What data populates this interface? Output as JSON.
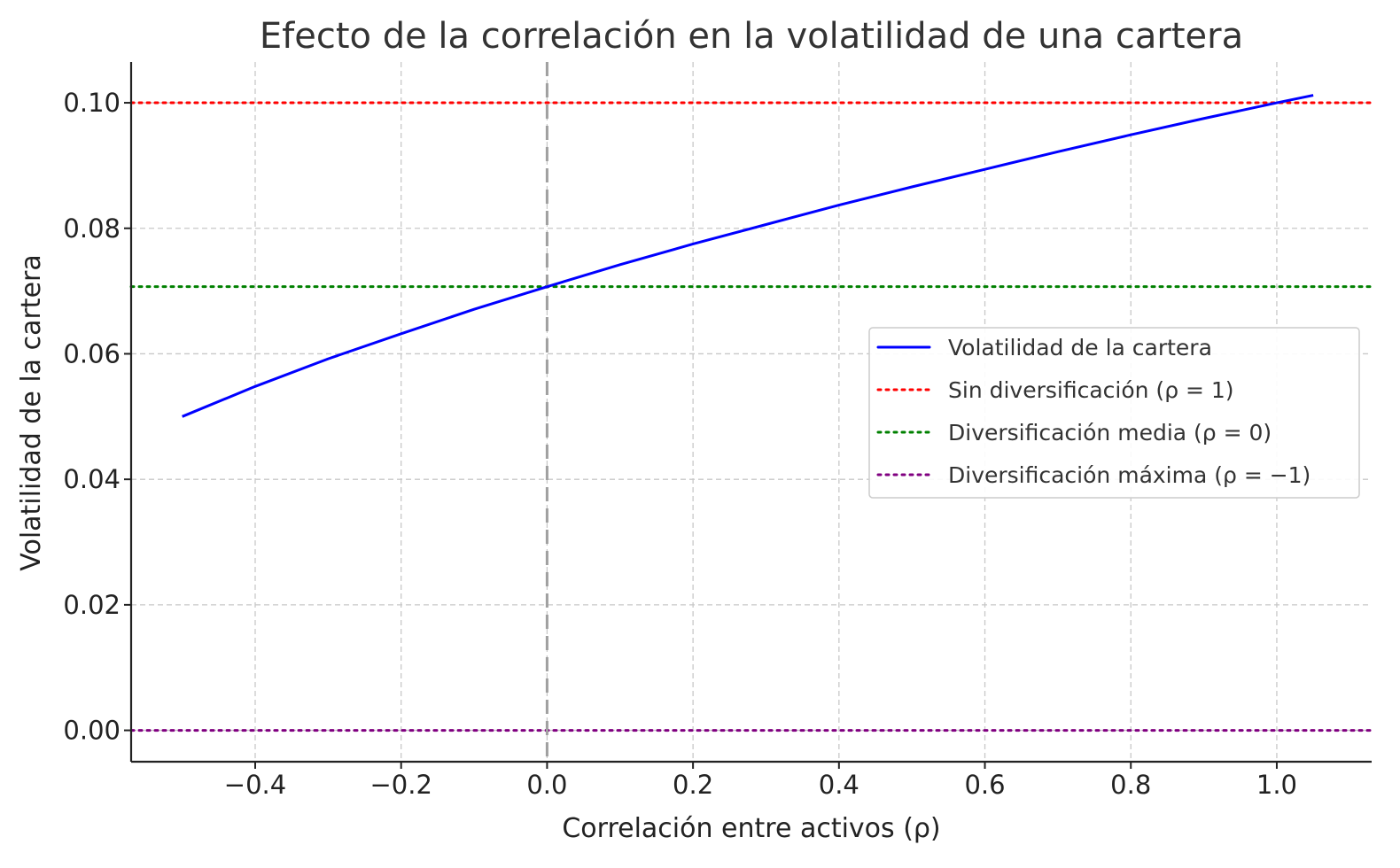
{
  "chart_data": {
    "type": "line",
    "title": "Efecto de la correlación en la volatilidad de una cartera",
    "xlabel": "Correlación entre activos (ρ)",
    "ylabel": "Volatilidad de la cartera",
    "xlim": [
      -0.57,
      1.13
    ],
    "ylim": [
      -0.005,
      0.1065
    ],
    "xticks": [
      -0.4,
      -0.2,
      0.0,
      0.2,
      0.4,
      0.6,
      0.8,
      1.0
    ],
    "xtick_labels": [
      "−0.4",
      "−0.2",
      "0.0",
      "0.2",
      "0.4",
      "0.6",
      "0.8",
      "1.0"
    ],
    "yticks": [
      0.0,
      0.02,
      0.04,
      0.06,
      0.08,
      0.1
    ],
    "ytick_labels": [
      "0.00",
      "0.02",
      "0.04",
      "0.06",
      "0.08",
      "0.10"
    ],
    "grid": true,
    "legend_position": "center-right",
    "series": [
      {
        "name": "Volatilidad de la cartera",
        "color": "#0000ff",
        "style": "solid",
        "x": [
          -0.5,
          -0.4,
          -0.3,
          -0.2,
          -0.1,
          0.0,
          0.1,
          0.2,
          0.3,
          0.4,
          0.5,
          0.6,
          0.7,
          0.8,
          0.9,
          1.0,
          1.05
        ],
        "y": [
          0.05,
          0.0548,
          0.0592,
          0.0632,
          0.0671,
          0.0707,
          0.0742,
          0.0775,
          0.0806,
          0.0837,
          0.0866,
          0.0894,
          0.0922,
          0.0949,
          0.0975,
          0.1,
          0.1012
        ]
      },
      {
        "name": "Sin diversificación (ρ = 1)",
        "color": "#ff0000",
        "style": "dotted",
        "hline": 0.1
      },
      {
        "name": "Diversificación media (ρ = 0)",
        "color": "#008000",
        "style": "dotted",
        "hline": 0.0707
      },
      {
        "name": "Diversificación máxima (ρ = −1)",
        "color": "#800080",
        "style": "dotted",
        "hline": 0.0
      }
    ],
    "vline": {
      "x": 0.0,
      "color": "#a0a0a0",
      "style": "dashed"
    }
  }
}
